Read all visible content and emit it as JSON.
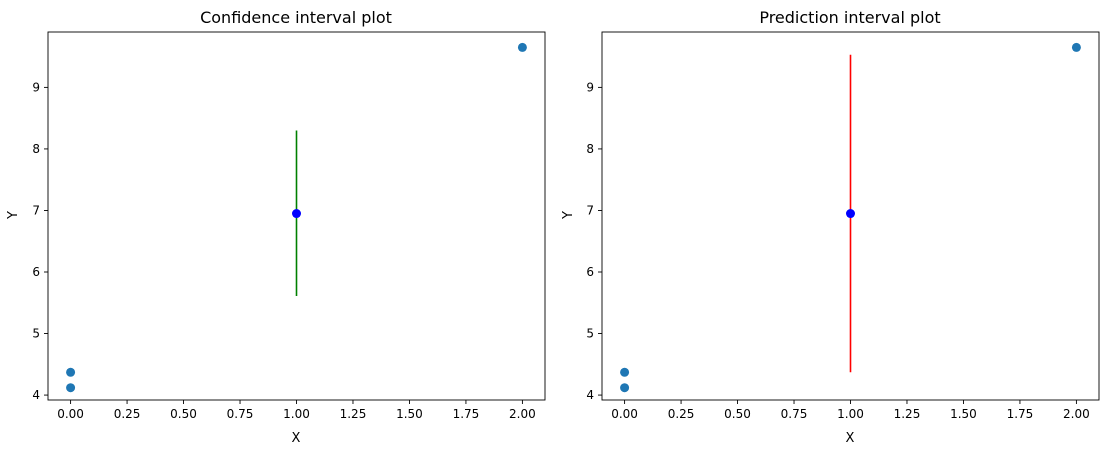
{
  "chart_data": [
    {
      "type": "scatter",
      "title": "Confidence interval plot",
      "xlabel": "X",
      "ylabel": "Y",
      "xlim": [
        -0.1,
        2.1
      ],
      "ylim": [
        3.92,
        9.9
      ],
      "xticks": [
        0.0,
        0.25,
        0.5,
        0.75,
        1.0,
        1.25,
        1.5,
        1.75,
        2.0
      ],
      "xtick_labels": [
        "0.00",
        "0.25",
        "0.50",
        "0.75",
        "1.00",
        "1.25",
        "1.50",
        "1.75",
        "2.00"
      ],
      "yticks": [
        4,
        5,
        6,
        7,
        8,
        9
      ],
      "ytick_labels": [
        "4",
        "5",
        "6",
        "7",
        "8",
        "9"
      ],
      "grid": false,
      "series": [
        {
          "kind": "points",
          "color": "#1f77b4",
          "points": [
            {
              "x": 0,
              "y": 4.12
            },
            {
              "x": 0,
              "y": 4.37
            },
            {
              "x": 2,
              "y": 9.65
            }
          ]
        },
        {
          "kind": "point",
          "color": "#0000ff",
          "points": [
            {
              "x": 1,
              "y": 6.95
            }
          ]
        },
        {
          "kind": "interval",
          "color": "#008000",
          "x": 1,
          "low": 5.61,
          "high": 8.3
        }
      ]
    },
    {
      "type": "scatter",
      "title": "Prediction interval plot",
      "xlabel": "X",
      "ylabel": "Y",
      "xlim": [
        -0.1,
        2.1
      ],
      "ylim": [
        3.92,
        9.9
      ],
      "xticks": [
        0.0,
        0.25,
        0.5,
        0.75,
        1.0,
        1.25,
        1.5,
        1.75,
        2.0
      ],
      "xtick_labels": [
        "0.00",
        "0.25",
        "0.50",
        "0.75",
        "1.00",
        "1.25",
        "1.50",
        "1.75",
        "2.00"
      ],
      "yticks": [
        4,
        5,
        6,
        7,
        8,
        9
      ],
      "ytick_labels": [
        "4",
        "5",
        "6",
        "7",
        "8",
        "9"
      ],
      "grid": false,
      "series": [
        {
          "kind": "points",
          "color": "#1f77b4",
          "points": [
            {
              "x": 0,
              "y": 4.12
            },
            {
              "x": 0,
              "y": 4.37
            },
            {
              "x": 2,
              "y": 9.65
            }
          ]
        },
        {
          "kind": "point",
          "color": "#0000ff",
          "points": [
            {
              "x": 1,
              "y": 6.95
            }
          ]
        },
        {
          "kind": "interval",
          "color": "#ff0000",
          "x": 1,
          "low": 4.37,
          "high": 9.53
        }
      ]
    }
  ]
}
